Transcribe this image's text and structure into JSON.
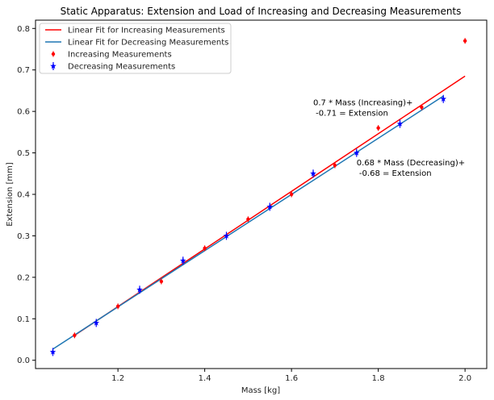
{
  "chart_data": {
    "type": "scatter",
    "title": "Static Apparatus: Extension and Load of Increasing and Decreasing Measurements",
    "xlabel": "Mass [kg]",
    "ylabel": "Extension [mm]",
    "xlim": [
      1.01,
      2.05
    ],
    "ylim": [
      -0.02,
      0.82
    ],
    "xticks": [
      1.2,
      1.4,
      1.6,
      1.8,
      2.0
    ],
    "xtick_labels": [
      "1.2",
      "1.4",
      "1.6",
      "1.8",
      "2.0"
    ],
    "yticks": [
      0.0,
      0.1,
      0.2,
      0.3,
      0.4,
      0.5,
      0.6,
      0.7,
      0.8
    ],
    "ytick_labels": [
      "0.0",
      "0.1",
      "0.2",
      "0.3",
      "0.4",
      "0.5",
      "0.6",
      "0.7",
      "0.8"
    ],
    "grid": false,
    "legend_position": "top-left",
    "series": [
      {
        "name": "Increasing Measurements",
        "kind": "points",
        "marker": "dot",
        "color": "#ff0000",
        "x": [
          1.1,
          1.2,
          1.3,
          1.4,
          1.5,
          1.6,
          1.7,
          1.8,
          1.9,
          2.0
        ],
        "y": [
          0.06,
          0.13,
          0.19,
          0.27,
          0.34,
          0.4,
          0.47,
          0.56,
          0.61,
          0.77
        ]
      },
      {
        "name": "Decreasing Measurements",
        "kind": "points",
        "marker": "star",
        "color": "#0000ff",
        "x": [
          1.05,
          1.15,
          1.25,
          1.35,
          1.45,
          1.55,
          1.65,
          1.75,
          1.85,
          1.95
        ],
        "y": [
          0.02,
          0.09,
          0.17,
          0.24,
          0.3,
          0.37,
          0.45,
          0.5,
          0.57,
          0.63
        ]
      },
      {
        "name": "Linear Fit for Increasing Measurements",
        "kind": "line",
        "color": "#ff0000",
        "x": [
          1.1,
          2.0
        ],
        "y": [
          0.06,
          0.685
        ]
      },
      {
        "name": "Linear Fit for Decreasing Measurements",
        "kind": "line",
        "color": "#1f77b4",
        "x": [
          1.05,
          1.95
        ],
        "y": [
          0.027,
          0.637
        ]
      }
    ],
    "legend_order": [
      "Linear Fit for Increasing Measurements",
      "Linear Fit for Decreasing Measurements",
      "Increasing Measurements",
      "Decreasing Measurements"
    ],
    "annotations": [
      {
        "lines": [
          "0.7 * Mass (Increasing)+",
          " -0.71 = Extension"
        ],
        "x": 1.65,
        "y": 0.615
      },
      {
        "lines": [
          "0.68 * Mass (Decreasing)+",
          " -0.68 = Extension"
        ],
        "x": 1.75,
        "y": 0.47
      }
    ]
  }
}
